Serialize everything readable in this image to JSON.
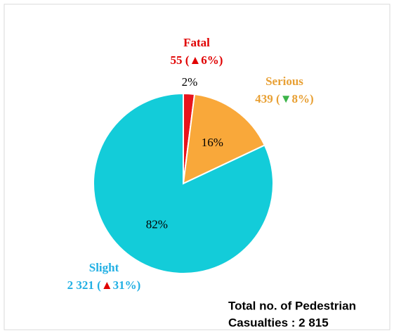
{
  "chart_data": {
    "type": "pie",
    "categories": [
      "Fatal",
      "Serious",
      "Slight"
    ],
    "values": [
      2,
      16,
      82
    ],
    "value_labels": [
      "2%",
      "16%",
      "82%"
    ],
    "colors": [
      "#e8141c",
      "#f9a83a",
      "#13ccd9"
    ],
    "label_colors": [
      "#e00000",
      "#e8a034",
      "#22b0e4"
    ],
    "details": [
      {
        "before": "55 (",
        "arrow": "▲",
        "after": "6%)",
        "arrow_color": "#e00000"
      },
      {
        "before": "439 (",
        "arrow": "▼",
        "after": "8%)",
        "arrow_color": "#3cb44a"
      },
      {
        "before": "2 321 (",
        "arrow": "▲",
        "after": "31%)",
        "arrow_color": "#e00000"
      }
    ],
    "total_text": [
      "Total no. of Pedestrian",
      "Casualties : 2 815"
    ]
  }
}
